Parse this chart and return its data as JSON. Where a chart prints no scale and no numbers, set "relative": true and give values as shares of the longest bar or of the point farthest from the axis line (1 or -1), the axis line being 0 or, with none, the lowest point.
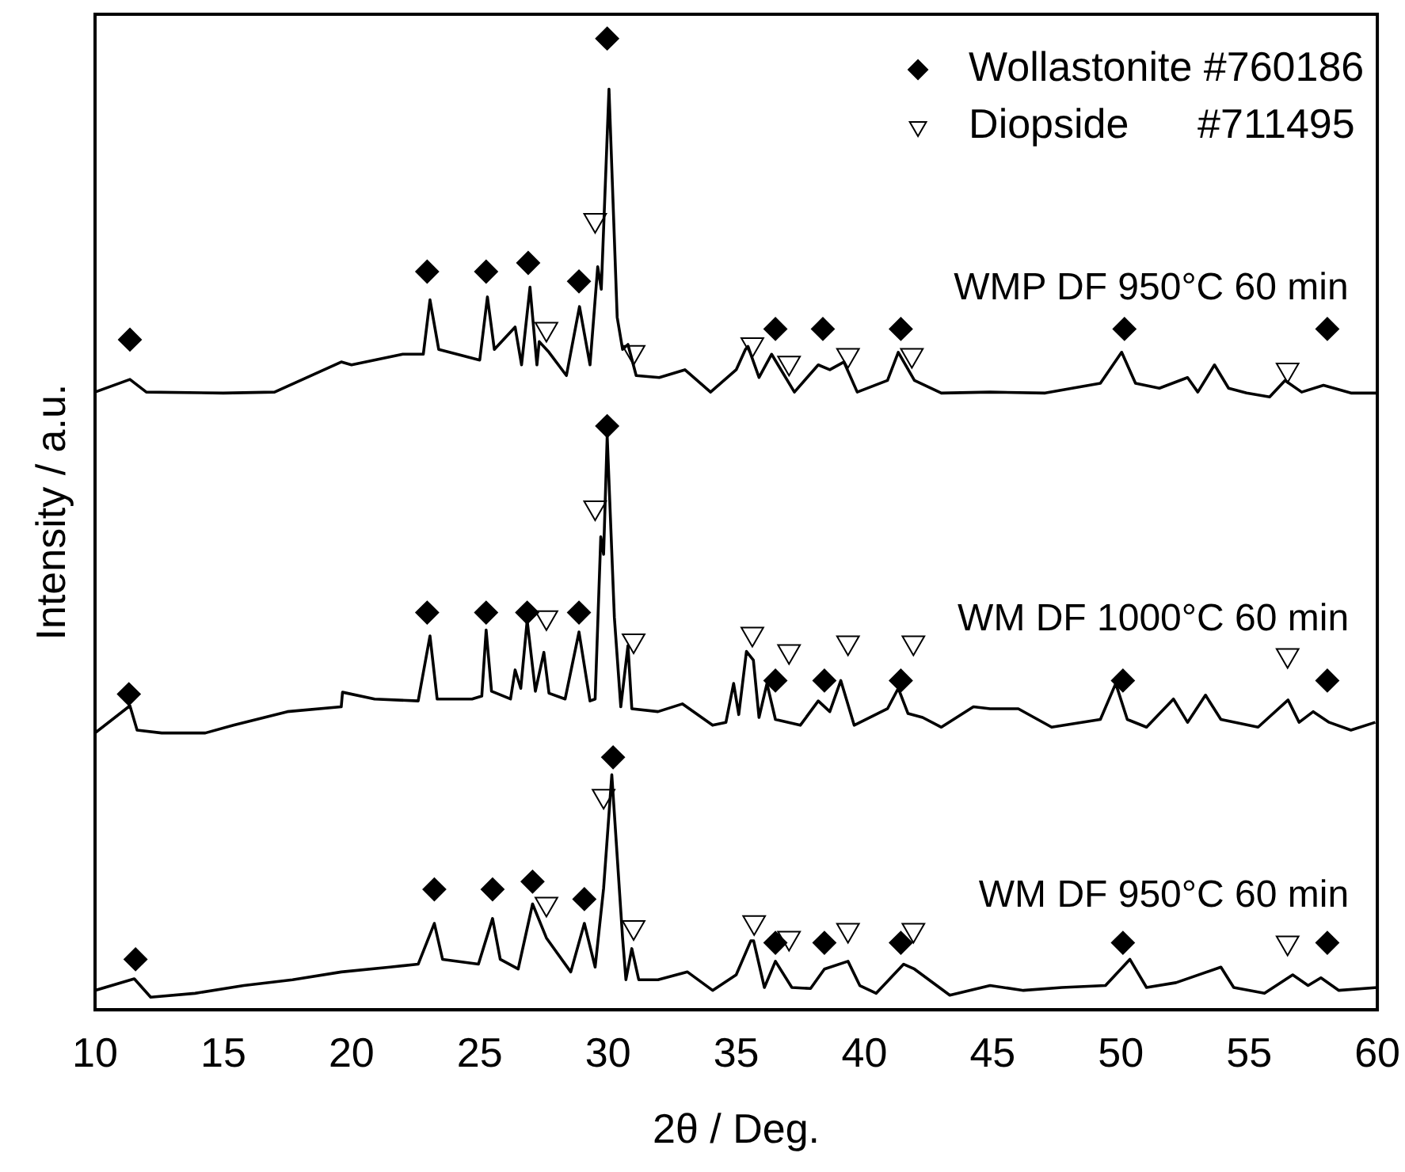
{
  "chart_data": {
    "type": "line",
    "xlabel": "2θ / Deg.",
    "ylabel": "Intensity / a.u.",
    "relative": true,
    "xlim": [
      10,
      60
    ],
    "xticks": [
      10,
      15,
      20,
      25,
      30,
      35,
      40,
      45,
      50,
      55,
      60
    ],
    "grid": false,
    "legend": "top right",
    "tick_labels": "x",
    "annotations": [
      "WMP DF 950°C 60 min",
      "WM DF 1000°C 60 min",
      "WM DF 950°C 60 min"
    ],
    "series": [
      {
        "color": "#000000",
        "marker": "none",
        "x": [
          10,
          11.36,
          12,
          15,
          17,
          19.6,
          20,
          22,
          22.8,
          23.06,
          23.4,
          25,
          25.3,
          25.57,
          26.38,
          26.63,
          26.96,
          27.23,
          27.32,
          27.7,
          28.38,
          28.89,
          29.3,
          29.6,
          29.74,
          30.04,
          30.36,
          30.57,
          30.78,
          31.1,
          32,
          33,
          34,
          35,
          35.36,
          35.46,
          35.89,
          36.38,
          37.27,
          38.2,
          38.65,
          39.2,
          39.72,
          40.9,
          41.32,
          41.95,
          43,
          44.9,
          47.05,
          48.1,
          49.2,
          50.03,
          50.57,
          51.5,
          52.6,
          53,
          53.65,
          54.2,
          54.9,
          55.8,
          56.4,
          57.05,
          57.9,
          58.97,
          60
        ],
        "values": [
          0.636,
          0.649,
          0.636,
          0.635,
          0.636,
          0.667,
          0.664,
          0.675,
          0.675,
          0.731,
          0.68,
          0.669,
          0.734,
          0.68,
          0.703,
          0.664,
          0.744,
          0.664,
          0.688,
          0.677,
          0.653,
          0.724,
          0.664,
          0.765,
          0.742,
          0.948,
          0.713,
          0.68,
          0.685,
          0.653,
          0.651,
          0.659,
          0.636,
          0.659,
          0.68,
          0.683,
          0.651,
          0.675,
          0.636,
          0.664,
          0.659,
          0.667,
          0.636,
          0.648,
          0.677,
          0.648,
          0.635,
          0.636,
          0.635,
          0.64,
          0.645,
          0.677,
          0.645,
          0.64,
          0.651,
          0.636,
          0.664,
          0.64,
          0.635,
          0.631,
          0.648,
          0.636,
          0.643,
          0.635,
          0.635
        ]
      },
      {
        "color": "#000000",
        "marker": "none",
        "x": [
          10,
          11.36,
          11.64,
          12.6,
          14.3,
          15.4,
          17.5,
          19.6,
          19.65,
          20.9,
          22.6,
          23.06,
          23.34,
          24.7,
          25.08,
          25.25,
          25.46,
          26.2,
          26.38,
          26.6,
          26.85,
          27.17,
          27.5,
          27.7,
          28.33,
          28.87,
          29.3,
          29.5,
          29.72,
          29.83,
          29.97,
          30.25,
          30.5,
          30.78,
          30.93,
          31.95,
          32.9,
          34.08,
          34.6,
          34.9,
          35.1,
          35.4,
          35.67,
          35.89,
          36.2,
          36.53,
          37.5,
          38.2,
          38.65,
          39.08,
          39.6,
          40.9,
          41.32,
          41.7,
          42.27,
          43,
          44.25,
          44.9,
          46,
          47.3,
          49.2,
          49.8,
          50.25,
          51,
          52.05,
          52.6,
          53.3,
          53.9,
          55.35,
          56.52,
          56.95,
          57.5,
          58.12,
          58.97,
          59.92
        ],
        "values": [
          0.285,
          0.313,
          0.288,
          0.285,
          0.285,
          0.293,
          0.307,
          0.312,
          0.327,
          0.32,
          0.318,
          0.385,
          0.32,
          0.32,
          0.323,
          0.391,
          0.328,
          0.32,
          0.35,
          0.331,
          0.401,
          0.328,
          0.368,
          0.326,
          0.32,
          0.389,
          0.318,
          0.32,
          0.487,
          0.469,
          0.591,
          0.404,
          0.312,
          0.375,
          0.31,
          0.307,
          0.315,
          0.293,
          0.296,
          0.336,
          0.304,
          0.369,
          0.36,
          0.301,
          0.336,
          0.299,
          0.293,
          0.318,
          0.307,
          0.339,
          0.293,
          0.31,
          0.331,
          0.305,
          0.301,
          0.291,
          0.312,
          0.31,
          0.31,
          0.291,
          0.299,
          0.336,
          0.299,
          0.291,
          0.32,
          0.296,
          0.324,
          0.299,
          0.291,
          0.319,
          0.296,
          0.307,
          0.296,
          0.288,
          0.296
        ]
      },
      {
        "color": "#000000",
        "marker": "none",
        "x": [
          10,
          11.53,
          12.17,
          13.9,
          15.8,
          17.7,
          19.6,
          21.5,
          22.6,
          23.23,
          23.55,
          24.95,
          25.5,
          25.8,
          26.5,
          27.06,
          27.6,
          28.55,
          29.08,
          29.5,
          29.83,
          30.15,
          30.57,
          30.7,
          30.93,
          31.2,
          31.95,
          33.1,
          34.08,
          35,
          35.57,
          35.68,
          36.1,
          36.53,
          37.17,
          37.9,
          38.44,
          39.36,
          39.82,
          40.46,
          41.53,
          41.95,
          43.33,
          44.9,
          46.2,
          47.7,
          49.4,
          50.35,
          51,
          52.15,
          53.9,
          54.4,
          55.6,
          56.7,
          57.3,
          57.8,
          58.5,
          60
        ],
        "values": [
          0.02,
          0.032,
          0.013,
          0.017,
          0.025,
          0.031,
          0.039,
          0.044,
          0.047,
          0.089,
          0.052,
          0.047,
          0.094,
          0.052,
          0.042,
          0.109,
          0.074,
          0.039,
          0.089,
          0.044,
          0.125,
          0.242,
          0.074,
          0.031,
          0.063,
          0.031,
          0.031,
          0.039,
          0.02,
          0.036,
          0.071,
          0.071,
          0.023,
          0.05,
          0.023,
          0.022,
          0.042,
          0.05,
          0.025,
          0.017,
          0.047,
          0.042,
          0.015,
          0.025,
          0.02,
          0.023,
          0.025,
          0.052,
          0.023,
          0.028,
          0.044,
          0.023,
          0.017,
          0.036,
          0.025,
          0.033,
          0.02,
          0.023
        ]
      },
      {
        "name": "Wollastonite #760186",
        "type": "scatter",
        "color": "#000000",
        "marker": "diamond",
        "x": [
          11.36,
          22.95,
          25.25,
          26.89,
          28.87,
          29.97,
          36.53,
          38.38,
          41.42,
          50.14,
          58.05,
          11.32,
          22.95,
          25.25,
          26.85,
          28.87,
          29.97,
          36.53,
          38.44,
          41.42,
          50.08,
          58.05,
          11.58,
          23.23,
          25.5,
          27.06,
          29.08,
          30.2,
          36.53,
          38.44,
          41.42,
          50.08,
          58.05
        ],
        "values": [
          0.69,
          0.76,
          0.76,
          0.769,
          0.75,
          1,
          0.701,
          0.701,
          0.701,
          0.701,
          0.701,
          0.325,
          0.409,
          0.409,
          0.409,
          0.409,
          0.601,
          0.339,
          0.339,
          0.339,
          0.339,
          0.339,
          0.052,
          0.124,
          0.124,
          0.132,
          0.114,
          0.26,
          0.069,
          0.069,
          0.069,
          0.069,
          0.069
        ]
      },
      {
        "name": "Diopside      #711495",
        "type": "scatter",
        "color": "#000000",
        "marker": "triangle",
        "x": [
          27.6,
          29.5,
          31,
          35.63,
          37.06,
          39.36,
          41.85,
          56.5,
          27.6,
          29.5,
          31,
          35.63,
          37.06,
          39.36,
          41.91,
          56.5,
          27.6,
          29.83,
          31,
          35.7,
          37.06,
          39.36,
          41.91,
          56.5
        ],
        "values": [
          0.701,
          0.813,
          0.677,
          0.685,
          0.666,
          0.674,
          0.674,
          0.659,
          0.404,
          0.517,
          0.38,
          0.387,
          0.369,
          0.378,
          0.378,
          0.365,
          0.109,
          0.22,
          0.085,
          0.09,
          0.074,
          0.082,
          0.082,
          0.069
        ]
      }
    ]
  }
}
